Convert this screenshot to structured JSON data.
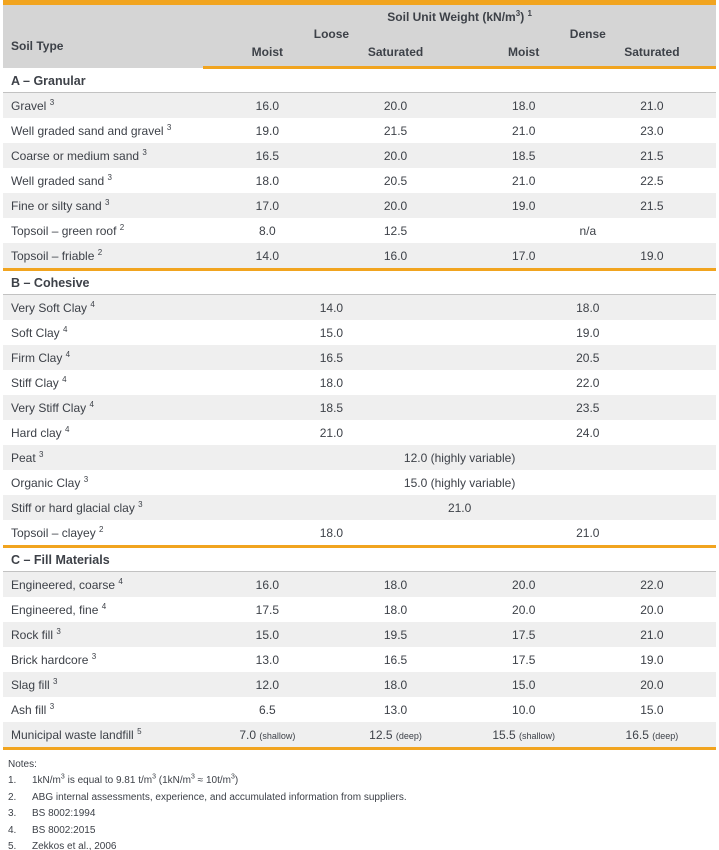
{
  "colors": {
    "orange": "#F1A41F",
    "headerBg": "#D5D5D5",
    "rowAlt": "#EFEFEF",
    "thinLine": "#C2C2C2",
    "text": "#3D4148"
  },
  "table": {
    "title": "Soil Unit Weight (kN/m^{3}) ^{1}",
    "type_col_header": "Soil Type",
    "groups": [
      "Loose",
      "Dense"
    ],
    "subcols": [
      "Moist",
      "Saturated",
      "Moist",
      "Saturated"
    ],
    "sections": [
      {
        "label": "A – Granular",
        "rows": [
          {
            "label": "Gravel ^{3}",
            "cells": [
              {
                "v": "16.0"
              },
              {
                "v": "20.0"
              },
              {
                "v": "18.0"
              },
              {
                "v": "21.0"
              }
            ]
          },
          {
            "label": "Well graded sand and gravel ^{3}",
            "cells": [
              {
                "v": "19.0"
              },
              {
                "v": "21.5"
              },
              {
                "v": "21.0"
              },
              {
                "v": "23.0"
              }
            ]
          },
          {
            "label": "Coarse or medium sand ^{3}",
            "cells": [
              {
                "v": "16.5"
              },
              {
                "v": "20.0"
              },
              {
                "v": "18.5"
              },
              {
                "v": "21.5"
              }
            ]
          },
          {
            "label": "Well graded sand ^{3}",
            "cells": [
              {
                "v": "18.0"
              },
              {
                "v": "20.5"
              },
              {
                "v": "21.0"
              },
              {
                "v": "22.5"
              }
            ]
          },
          {
            "label": "Fine or silty sand ^{3}",
            "cells": [
              {
                "v": "17.0"
              },
              {
                "v": "20.0"
              },
              {
                "v": "19.0"
              },
              {
                "v": "21.5"
              }
            ]
          },
          {
            "label": "Topsoil – green roof ^{2}",
            "cells": [
              {
                "v": "8.0"
              },
              {
                "v": "12.5"
              },
              {
                "v": "n/a",
                "span": 2
              }
            ]
          },
          {
            "label": "Topsoil – friable ^{2}",
            "cells": [
              {
                "v": "14.0"
              },
              {
                "v": "16.0"
              },
              {
                "v": "17.0"
              },
              {
                "v": "19.0"
              }
            ]
          }
        ]
      },
      {
        "label": "B – Cohesive",
        "rows": [
          {
            "label": "Very Soft Clay ^{4}",
            "cells": [
              {
                "v": "14.0",
                "span": 2
              },
              {
                "v": "18.0",
                "span": 2
              }
            ]
          },
          {
            "label": "Soft Clay ^{4}",
            "cells": [
              {
                "v": "15.0",
                "span": 2
              },
              {
                "v": "19.0",
                "span": 2
              }
            ]
          },
          {
            "label": "Firm Clay ^{4}",
            "cells": [
              {
                "v": "16.5",
                "span": 2
              },
              {
                "v": "20.5",
                "span": 2
              }
            ]
          },
          {
            "label": "Stiff Clay ^{4}",
            "cells": [
              {
                "v": "18.0",
                "span": 2
              },
              {
                "v": "22.0",
                "span": 2
              }
            ]
          },
          {
            "label": "Very Stiff Clay ^{4}",
            "cells": [
              {
                "v": "18.5",
                "span": 2
              },
              {
                "v": "23.5",
                "span": 2
              }
            ]
          },
          {
            "label": "Hard clay ^{4}",
            "cells": [
              {
                "v": "21.0",
                "span": 2
              },
              {
                "v": "24.0",
                "span": 2
              }
            ]
          },
          {
            "label": "Peat ^{3}",
            "cells": [
              {
                "v": "12.0 (highly variable)",
                "span": 4
              }
            ]
          },
          {
            "label": "Organic Clay ^{3}",
            "cells": [
              {
                "v": "15.0 (highly variable)",
                "span": 4
              }
            ]
          },
          {
            "label": "Stiff or hard glacial clay ^{3}",
            "cells": [
              {
                "v": "21.0",
                "span": 4
              }
            ]
          },
          {
            "label": "Topsoil – clayey ^{2}",
            "cells": [
              {
                "v": "18.0",
                "span": 2
              },
              {
                "v": "21.0",
                "span": 2
              }
            ]
          }
        ]
      },
      {
        "label": "C – Fill Materials",
        "rows": [
          {
            "label": "Engineered, coarse ^{4}",
            "cells": [
              {
                "v": "16.0"
              },
              {
                "v": "18.0"
              },
              {
                "v": "20.0"
              },
              {
                "v": "22.0"
              }
            ]
          },
          {
            "label": "Engineered, fine ^{4}",
            "cells": [
              {
                "v": "17.5"
              },
              {
                "v": "18.0"
              },
              {
                "v": "20.0"
              },
              {
                "v": "20.0"
              }
            ]
          },
          {
            "label": "Rock fill ^{3}",
            "cells": [
              {
                "v": "15.0"
              },
              {
                "v": "19.5"
              },
              {
                "v": "17.5"
              },
              {
                "v": "21.0"
              }
            ]
          },
          {
            "label": "Brick hardcore ^{3}",
            "cells": [
              {
                "v": "13.0"
              },
              {
                "v": "16.5"
              },
              {
                "v": "17.5"
              },
              {
                "v": "19.0"
              }
            ]
          },
          {
            "label": "Slag fill ^{3}",
            "cells": [
              {
                "v": "12.0"
              },
              {
                "v": "18.0"
              },
              {
                "v": "15.0"
              },
              {
                "v": "20.0"
              }
            ]
          },
          {
            "label": "Ash fill ^{3}",
            "cells": [
              {
                "v": "6.5"
              },
              {
                "v": "13.0"
              },
              {
                "v": "10.0"
              },
              {
                "v": "15.0"
              }
            ]
          },
          {
            "label": "Municipal waste landfill ^{5}",
            "cells": [
              {
                "v": "7.0",
                "suffix": "(shallow)"
              },
              {
                "v": "12.5",
                "suffix": "(deep)"
              },
              {
                "v": "15.5",
                "suffix": "(shallow)"
              },
              {
                "v": "16.5",
                "suffix": "(deep)"
              }
            ]
          }
        ]
      }
    ]
  },
  "notes": {
    "title": "Notes:",
    "items": [
      {
        "num": "1.",
        "text": "1kN/m^{3} is  equal to 9.81 t/m^{3} (1kN/m^{3} ≈ 10t/m^{3})"
      },
      {
        "num": "2.",
        "text": "ABG internal assessments, experience, and accumulated information from suppliers."
      },
      {
        "num": "3.",
        "text": "BS 8002:1994"
      },
      {
        "num": "4.",
        "text": "BS 8002:2015"
      },
      {
        "num": "5.",
        "text": "Zekkos et al., 2006"
      }
    ]
  }
}
